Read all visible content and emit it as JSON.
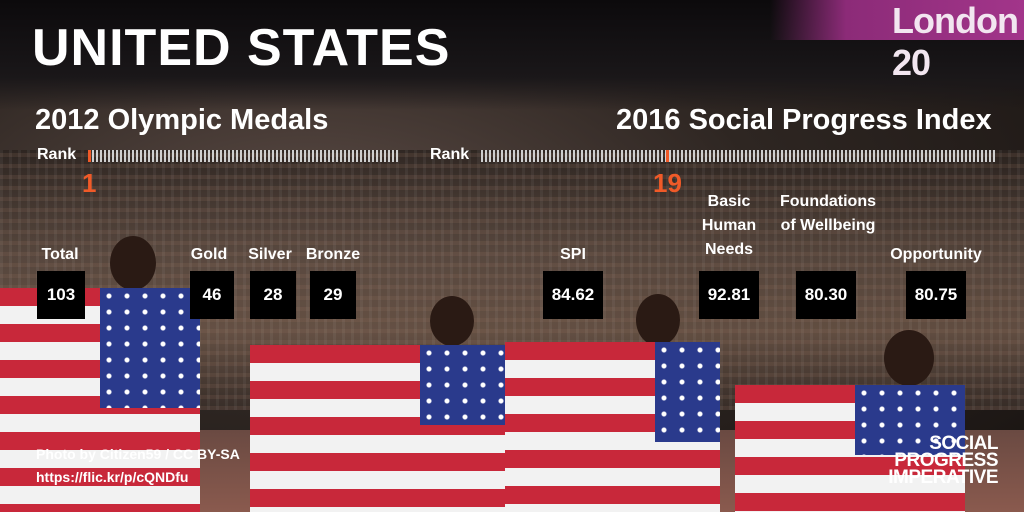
{
  "banner": {
    "text": "London 20"
  },
  "title": "UNITED STATES",
  "olympics": {
    "heading": "2012 Olympic Medals",
    "rank_label": "Rank",
    "rank": "1",
    "stats": [
      {
        "label": "Total",
        "value": "103"
      },
      {
        "label": "Gold",
        "value": "46"
      },
      {
        "label": "Silver",
        "value": "28"
      },
      {
        "label": "Bronze",
        "value": "29"
      }
    ]
  },
  "spi": {
    "heading": "2016 Social Progress Index",
    "rank_label": "Rank",
    "rank": "19",
    "stats": [
      {
        "label": "SPI",
        "value": "84.62"
      },
      {
        "label": "Basic Human Needs",
        "value": "92.81"
      },
      {
        "label": "Foundations of Wellbeing",
        "value": "80.30"
      },
      {
        "label": "Opportunity",
        "value": "80.75"
      }
    ]
  },
  "credit": {
    "line1": "Photo by Citizen59 / CC BY-SA",
    "line2": "https://flic.kr/p/cQNDfu"
  },
  "logo": {
    "line1": "SOCIAL",
    "line2": "PROGRESS",
    "line3": "IMPERATIVE"
  },
  "colors": {
    "accent": "#f05a28",
    "box": "#000000",
    "text": "#ffffff"
  }
}
